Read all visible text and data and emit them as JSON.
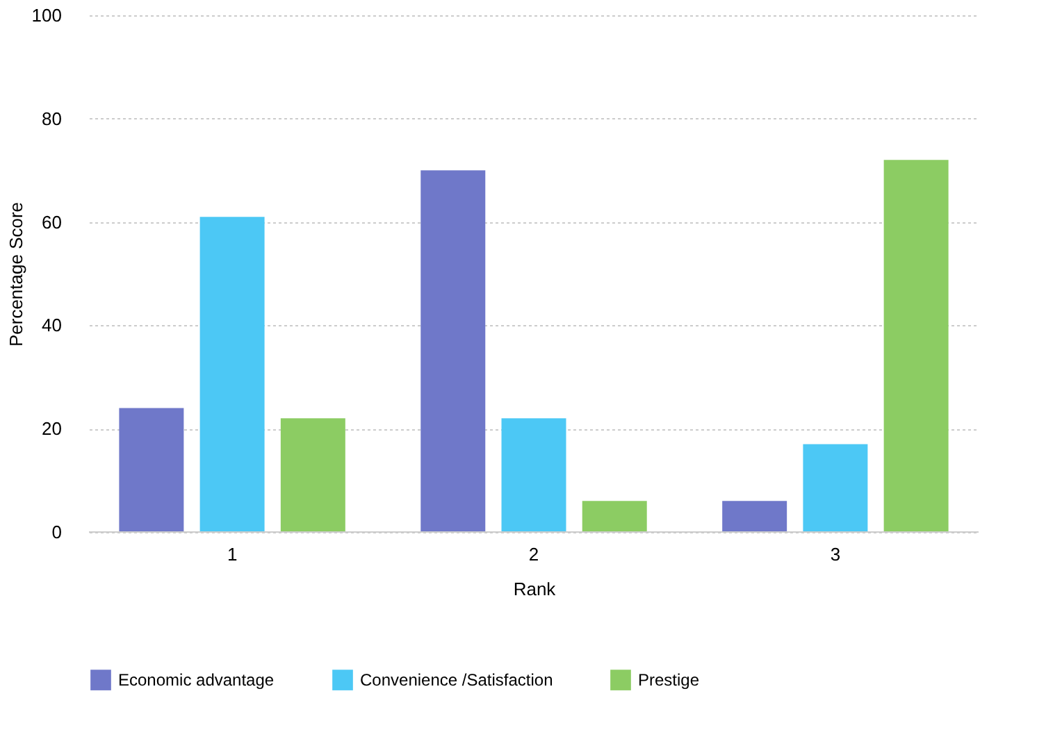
{
  "chart_data": {
    "type": "bar",
    "xlabel": "Rank",
    "ylabel": "Percentage Score",
    "categories": [
      "1",
      "2",
      "3"
    ],
    "series": [
      {
        "name": "Economic advantage",
        "color": "#6f78c9",
        "values": [
          24,
          70,
          6
        ]
      },
      {
        "name": "Convenience /Satisfaction",
        "color": "#4cc8f5",
        "values": [
          61,
          22,
          17
        ]
      },
      {
        "name": "Prestige",
        "color": "#8ccc63",
        "values": [
          22,
          6,
          72
        ]
      }
    ],
    "ylim": [
      0,
      100
    ],
    "yticks": [
      0,
      20,
      40,
      60,
      80,
      100
    ],
    "grid": "y",
    "legend": "bottom"
  }
}
